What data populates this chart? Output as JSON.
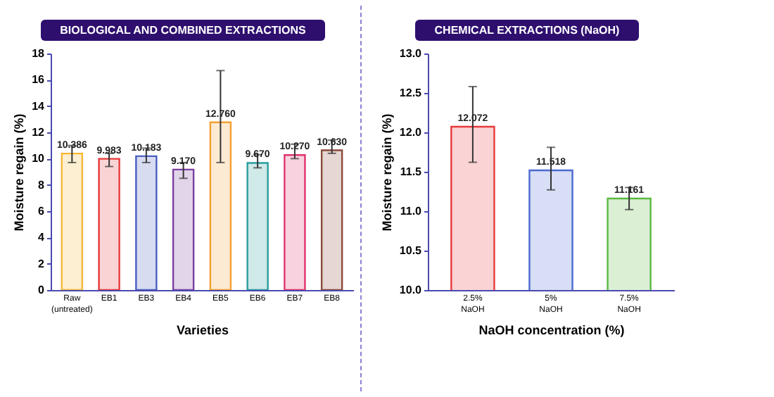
{
  "chart_data": [
    {
      "type": "bar",
      "title": "BIOLOGICAL AND COMBINED EXTRACTIONS",
      "xlabel": "Varieties",
      "ylabel": "Moisture regain (%)",
      "categories": [
        "Raw (untreated)",
        "EB1",
        "EB3",
        "EB4",
        "EB5",
        "EB6",
        "EB7",
        "EB8"
      ],
      "values": [
        10.386,
        9.983,
        10.183,
        9.17,
        12.76,
        9.67,
        10.27,
        10.63
      ],
      "colors": [
        "#f7b733",
        "#e83a3a",
        "#4a5fc1",
        "#7b3fa0",
        "#f5a030",
        "#2a9d9d",
        "#e0336e",
        "#8b4a3a"
      ],
      "errors": [
        [
          9.7,
          11.0
        ],
        [
          9.4,
          10.4
        ],
        [
          9.7,
          10.8
        ],
        [
          8.5,
          9.7
        ],
        [
          9.7,
          16.7
        ],
        [
          9.3,
          10.3
        ],
        [
          10.0,
          11.1
        ],
        [
          10.4,
          11.4
        ]
      ],
      "value_labels": [
        "10.386",
        "9.983",
        "10.183",
        "9.170",
        "12.760",
        "9.670",
        "10.270",
        "10.630"
      ],
      "ylim": [
        0,
        18
      ],
      "yticks": [
        0,
        2,
        4,
        6,
        8,
        10,
        12,
        14,
        16,
        18
      ],
      "grid": false
    },
    {
      "type": "bar",
      "title": "CHEMICAL EXTRACTIONS (NaOH)",
      "xlabel": "NaOH concentration (%)",
      "ylabel": "Moisture regain (%)",
      "categories": [
        "2.5% NaOH",
        "5% NaOH",
        "7.5% NaOH"
      ],
      "values": [
        12.072,
        11.518,
        11.161
      ],
      "colors": [
        "#e83a3a",
        "#4a6ad0",
        "#5ab840"
      ],
      "errors": [
        [
          11.62,
          12.58
        ],
        [
          11.27,
          11.81
        ],
        [
          11.02,
          11.3
        ]
      ],
      "value_labels": [
        "12.072",
        "11.518",
        "11.161"
      ],
      "ylim": [
        10,
        13
      ],
      "yticks": [
        {
          "value": 10,
          "label": "10.0"
        },
        {
          "value": 10.5,
          "label": "10.5"
        },
        {
          "value": 11,
          "label": "11.0"
        },
        {
          "value": 11.5,
          "label": "11.5"
        },
        {
          "value": 12,
          "label": "12.0"
        },
        {
          "value": 12.5,
          "label": "12.5"
        },
        {
          "value": 13,
          "label": "13.0"
        }
      ],
      "grid": false
    }
  ]
}
